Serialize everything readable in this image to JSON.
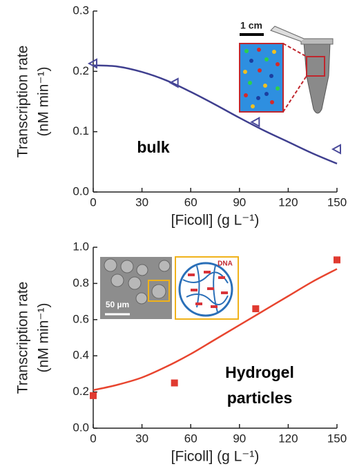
{
  "chart_data": [
    {
      "type": "scatter",
      "x": [
        0,
        50,
        100,
        150
      ],
      "series": [
        {
          "color": "#4a4a9a",
          "marker": "triangle-left",
          "values": [
            0.213,
            0.181,
            0.116,
            0.071
          ]
        }
      ],
      "fit": {
        "color": "#3f3f8f",
        "x": [
          0,
          15,
          30,
          45,
          60,
          75,
          90,
          105,
          120,
          135,
          150
        ],
        "values": [
          0.21,
          0.208,
          0.199,
          0.185,
          0.166,
          0.145,
          0.123,
          0.102,
          0.083,
          0.064,
          0.047
        ]
      },
      "xlim": [
        0,
        150
      ],
      "ylim": [
        0,
        0.3
      ],
      "xticks": [
        0,
        30,
        60,
        90,
        120,
        150
      ],
      "yticks": [
        {
          "value": 0,
          "label": "0.0"
        },
        0.1,
        0.2,
        0.3
      ],
      "xlabel": "[Ficoll] (g L⁻¹)",
      "ylabel": [
        "Transcription rate",
        "(nM min⁻¹)"
      ],
      "annotations": [
        "bulk",
        "1 cm"
      ]
    },
    {
      "type": "scatter",
      "x": [
        0,
        50,
        100,
        150
      ],
      "series": [
        {
          "color": "#e03a30",
          "marker": "square",
          "values": [
            0.18,
            0.25,
            0.66,
            0.93
          ]
        }
      ],
      "fit": {
        "color": "#e8452f",
        "x": [
          0,
          15,
          30,
          45,
          60,
          75,
          90,
          105,
          120,
          135,
          150
        ],
        "values": [
          0.21,
          0.24,
          0.28,
          0.34,
          0.41,
          0.49,
          0.57,
          0.65,
          0.73,
          0.81,
          0.88
        ]
      },
      "xlim": [
        0,
        150
      ],
      "ylim": [
        0,
        1
      ],
      "xticks": [
        0,
        30,
        60,
        90,
        120,
        150
      ],
      "yticks": [
        {
          "value": 0,
          "label": "0.0"
        },
        0.2,
        0.4,
        0.6,
        0.8,
        {
          "value": 1,
          "label": "1.0"
        }
      ],
      "xlabel": "[Ficoll] (g L⁻¹)",
      "ylabel": [
        "Transcription rate",
        "(nM min⁻¹)"
      ],
      "annotations": [
        "Hydrogel",
        "particles",
        "50 µm",
        "DNA"
      ]
    }
  ]
}
